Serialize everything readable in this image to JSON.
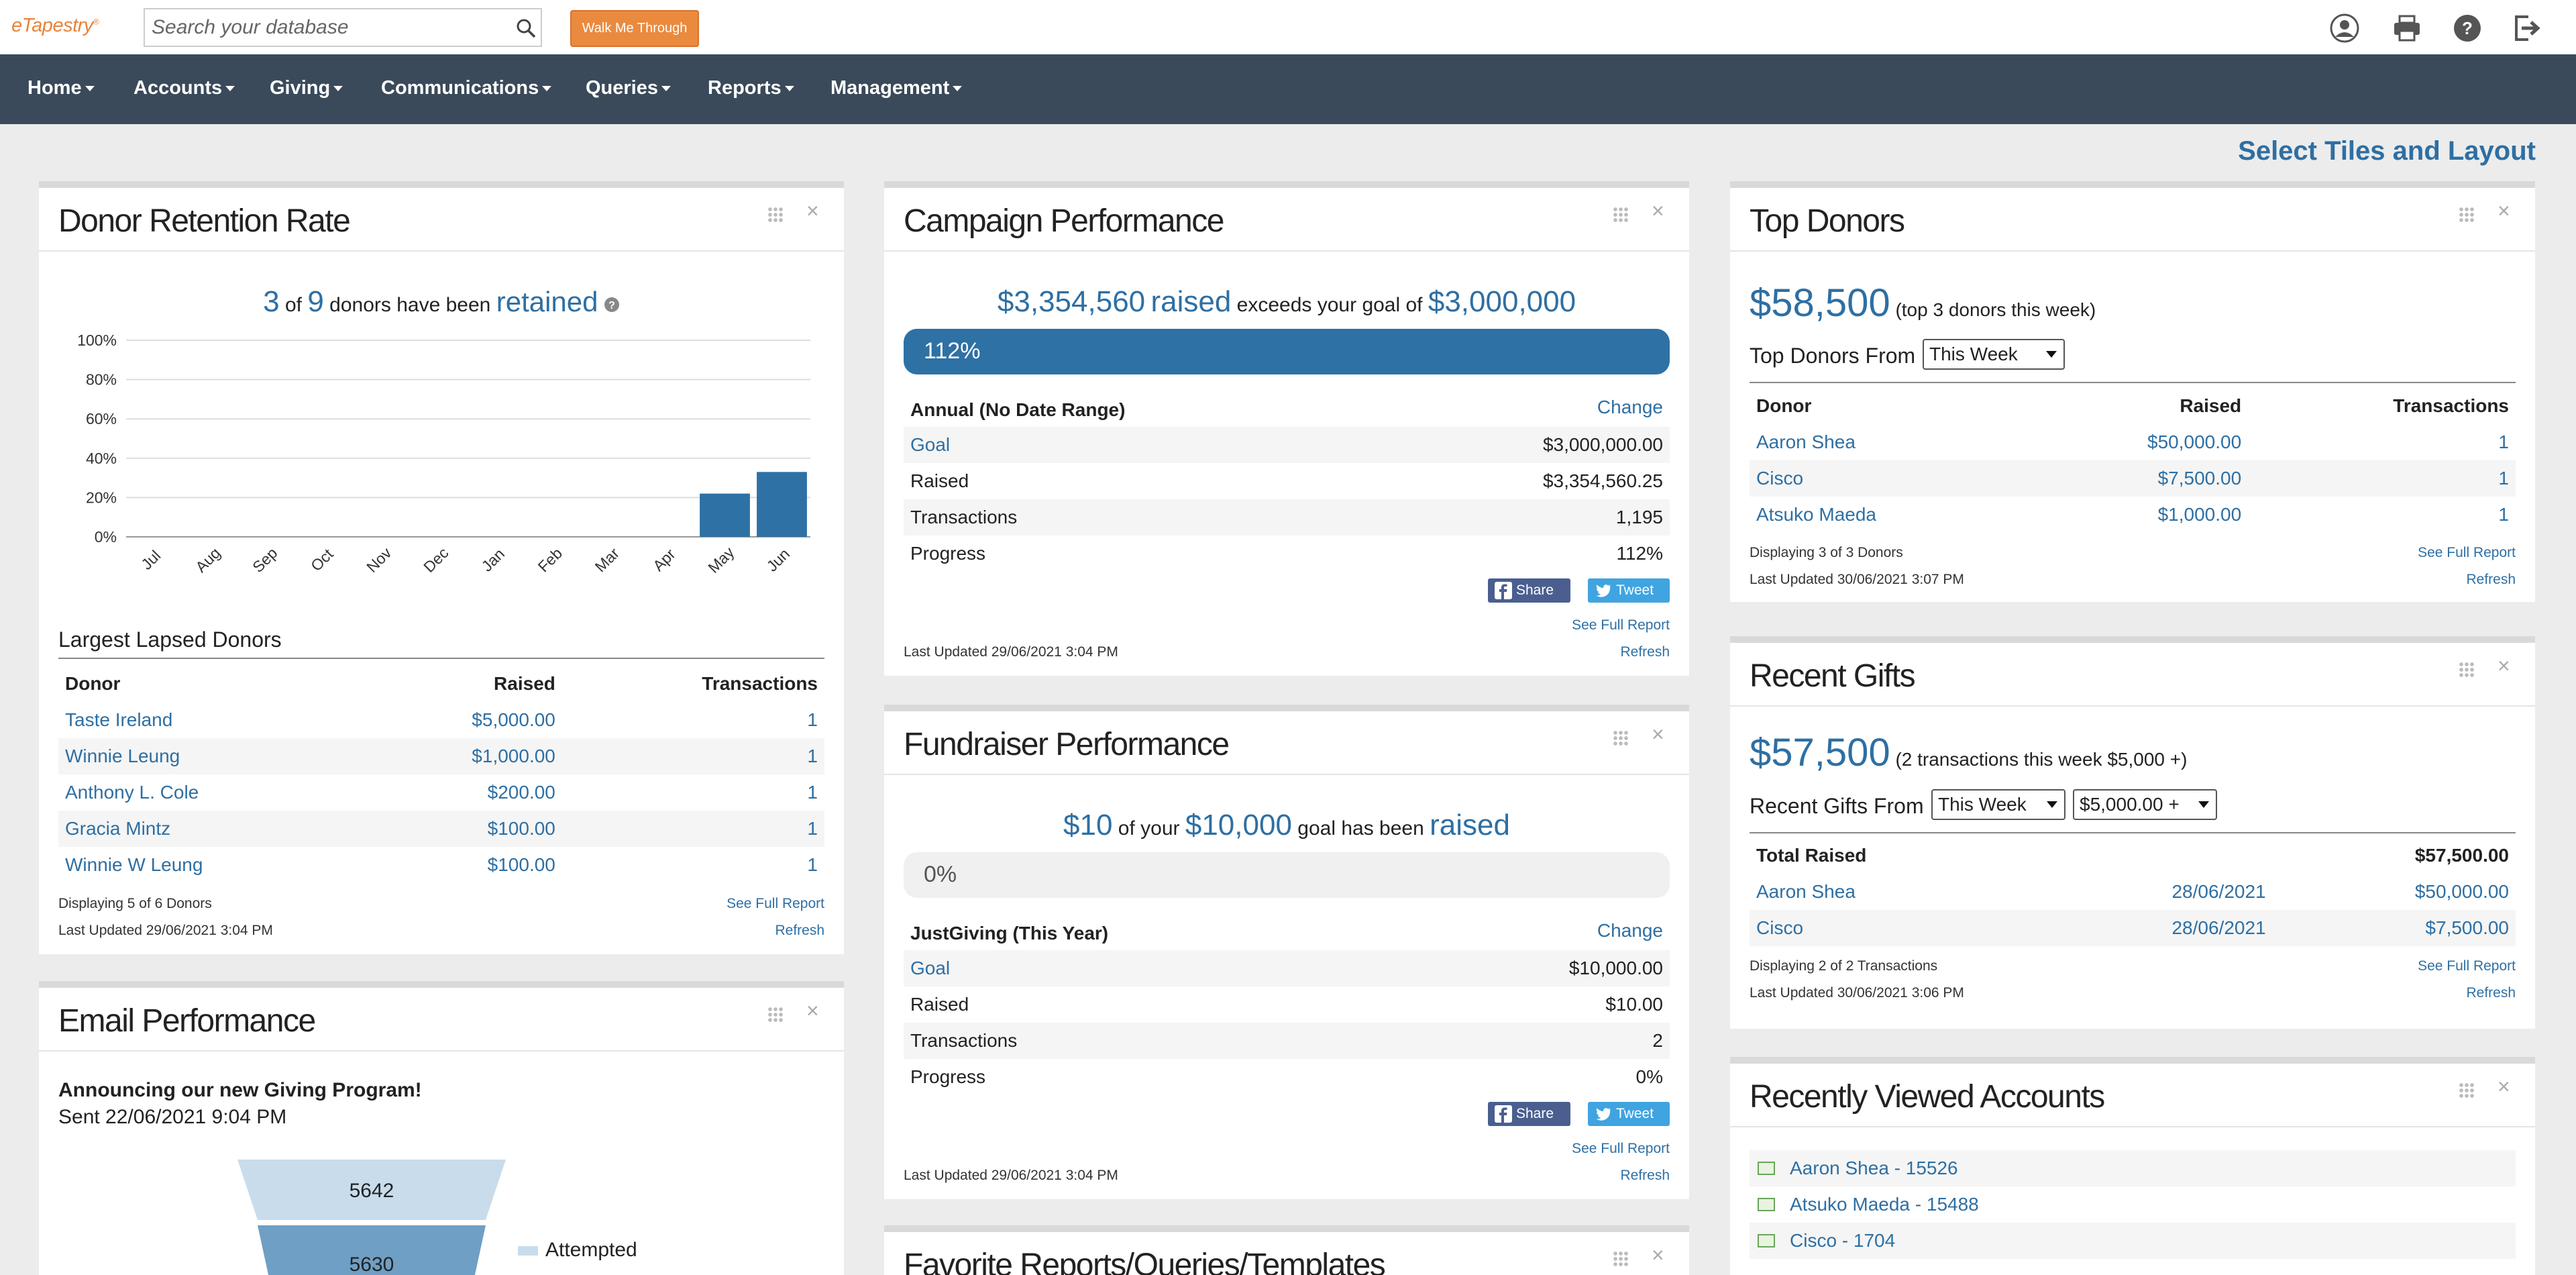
{
  "header": {
    "logo": "eTapestry",
    "search_placeholder": "Search your database",
    "walk_button": "Walk Me Through",
    "icons": [
      "user-icon",
      "print-icon",
      "help-icon",
      "logout-icon"
    ]
  },
  "nav": {
    "items": [
      {
        "label": "Home"
      },
      {
        "label": "Accounts"
      },
      {
        "label": "Giving"
      },
      {
        "label": "Communications"
      },
      {
        "label": "Queries"
      },
      {
        "label": "Reports"
      },
      {
        "label": "Management"
      }
    ]
  },
  "select_tiles": "Select Tiles and Layout",
  "retention": {
    "title": "Donor Retention Rate",
    "retained": "3",
    "of": "of",
    "total": "9",
    "text": "donors have been",
    "retained_word": "retained",
    "lapsed_title": "Largest Lapsed Donors",
    "columns": [
      "Donor",
      "Raised",
      "Transactions"
    ],
    "rows": [
      {
        "donor": "Taste Ireland",
        "raised": "$5,000.00",
        "tx": "1"
      },
      {
        "donor": "Winnie Leung",
        "raised": "$1,000.00",
        "tx": "1"
      },
      {
        "donor": "Anthony L. Cole",
        "raised": "$200.00",
        "tx": "1"
      },
      {
        "donor": "Gracia Mintz",
        "raised": "$100.00",
        "tx": "1"
      },
      {
        "donor": "Winnie W Leung",
        "raised": "$100.00",
        "tx": "1"
      }
    ],
    "displaying": "Displaying 5 of 6 Donors",
    "see_full": "See Full Report",
    "updated": "Last Updated 29/06/2021 3:04 PM",
    "refresh": "Refresh"
  },
  "chart_data": {
    "type": "bar",
    "categories": [
      "Jul",
      "Aug",
      "Sep",
      "Oct",
      "Nov",
      "Dec",
      "Jan",
      "Feb",
      "Mar",
      "Apr",
      "May",
      "Jun"
    ],
    "values": [
      0,
      0,
      0,
      0,
      0,
      0,
      0,
      0,
      0,
      0,
      22,
      33
    ],
    "yticks": [
      "0%",
      "20%",
      "40%",
      "60%",
      "80%",
      "100%"
    ],
    "ylim": [
      0,
      100
    ],
    "grid": true,
    "color": "#2e71a4"
  },
  "campaign": {
    "title": "Campaign Performance",
    "raised_amount": "$3,354,560",
    "raised_word": "raised",
    "exceeds": "exceeds your goal of",
    "goal": "$3,000,000",
    "progress_label": "112%",
    "progress_fraction": 1.0,
    "section": "Annual (No Date Range)",
    "change": "Change",
    "rows": [
      {
        "label": "Goal",
        "value": "$3,000,000.00",
        "link": true
      },
      {
        "label": "Raised",
        "value": "$3,354,560.25",
        "link": false
      },
      {
        "label": "Transactions",
        "value": "1,195",
        "link": false
      },
      {
        "label": "Progress",
        "value": "112%",
        "link": false
      }
    ],
    "share": "Share",
    "tweet": "Tweet",
    "see_full": "See Full Report",
    "updated": "Last Updated 29/06/2021 3:04 PM",
    "refresh": "Refresh"
  },
  "fundraiser": {
    "title": "Fundraiser Performance",
    "amount": "$10",
    "of_your": "of your",
    "goal": "$10,000",
    "goal_text": "goal has been",
    "raised_word": "raised",
    "progress_label": "0%",
    "progress_fraction": 0.0,
    "section": "JustGiving (This Year)",
    "change": "Change",
    "rows": [
      {
        "label": "Goal",
        "value": "$10,000.00",
        "link": true
      },
      {
        "label": "Raised",
        "value": "$10.00",
        "link": false
      },
      {
        "label": "Transactions",
        "value": "2",
        "link": false
      },
      {
        "label": "Progress",
        "value": "0%",
        "link": false
      }
    ],
    "share": "Share",
    "tweet": "Tweet",
    "see_full": "See Full Report",
    "updated": "Last Updated 29/06/2021 3:04 PM",
    "refresh": "Refresh"
  },
  "favorites": {
    "title": "Favorite Reports/Queries/Templates"
  },
  "email": {
    "title": "Email Performance",
    "subject": "Announcing our new Giving Program!",
    "sent": "Sent  22/06/2021 9:04 PM",
    "funnel": [
      "5642",
      "5630"
    ],
    "legend": "Attempted"
  },
  "top_donors": {
    "title": "Top Donors",
    "amount": "$58,500",
    "caption": "(top 3 donors this week)",
    "from_label": "Top Donors From",
    "period": "This Week",
    "columns": [
      "Donor",
      "Raised",
      "Transactions"
    ],
    "rows": [
      {
        "donor": "Aaron Shea",
        "raised": "$50,000.00",
        "tx": "1"
      },
      {
        "donor": "Cisco",
        "raised": "$7,500.00",
        "tx": "1"
      },
      {
        "donor": "Atsuko Maeda",
        "raised": "$1,000.00",
        "tx": "1"
      }
    ],
    "displaying": "Displaying 3 of 3 Donors",
    "see_full": "See Full Report",
    "updated": "Last Updated 30/06/2021 3:07 PM",
    "refresh": "Refresh"
  },
  "recent_gifts": {
    "title": "Recent Gifts",
    "amount": "$57,500",
    "caption": "(2 transactions this week $5,000 +)",
    "from_label": "Recent Gifts From",
    "period": "This Week",
    "threshold": "$5,000.00 +",
    "total_label": "Total Raised",
    "total_value": "$57,500.00",
    "rows": [
      {
        "donor": "Aaron Shea",
        "date": "28/06/2021",
        "amount": "$50,000.00"
      },
      {
        "donor": "Cisco",
        "date": "28/06/2021",
        "amount": "$7,500.00"
      }
    ],
    "displaying": "Displaying 2 of 2 Transactions",
    "see_full": "See Full Report",
    "updated": "Last Updated 30/06/2021 3:06 PM",
    "refresh": "Refresh"
  },
  "recent_accounts": {
    "title": "Recently Viewed Accounts",
    "items": [
      "Aaron Shea - 15526",
      "Atsuko Maeda - 15488",
      "Cisco - 1704"
    ]
  }
}
